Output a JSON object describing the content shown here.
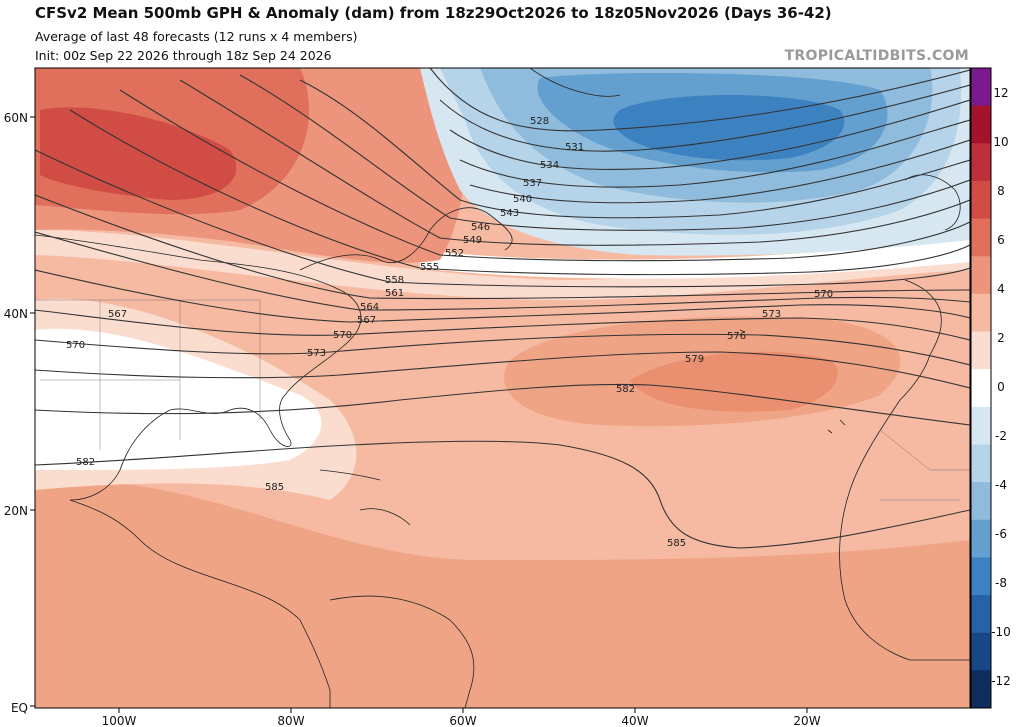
{
  "header": {
    "title": "CFSv2 Mean 500mb GPH & Anomaly (dam) from 18z29Oct2026 to 18z05Nov2026 (Days 36-42)",
    "subtitle1": "Average of last 48 forecasts (12 runs x 4 members)",
    "subtitle2": "Init: 00z Sep 22 2026 through 18z Sep 24 2026",
    "brand": "TROPICALTIDBITS.COM"
  },
  "axes": {
    "lat_labels": [
      "60N",
      "40N",
      "20N",
      "EQ"
    ],
    "lon_labels": [
      "100W",
      "80W",
      "60W",
      "40W",
      "20W"
    ]
  },
  "colorbar": {
    "labels": [
      "12",
      "10",
      "8",
      "6",
      "4",
      "2",
      "0",
      "-2",
      "-4",
      "-6",
      "-8",
      "-10",
      "-12"
    ],
    "colors": [
      "#7b1a8c",
      "#a3132c",
      "#bd2f3a",
      "#d04c45",
      "#e0705c",
      "#ed957c",
      "#f6baa2",
      "#fbddd0",
      "#ffffff",
      "#d6e7f2",
      "#b6d4e9",
      "#8fbcdd",
      "#64a0cf",
      "#3d82c0",
      "#2562a8",
      "#184785",
      "#0e2d5c"
    ]
  },
  "contours": {
    "labels": [
      "528",
      "531",
      "534",
      "537",
      "540",
      "543",
      "546",
      "549",
      "552",
      "555",
      "558",
      "561",
      "564",
      "567",
      "570",
      "573",
      "576",
      "579",
      "582",
      "585",
      "567",
      "570",
      "570",
      "573",
      "582",
      "585"
    ]
  }
}
